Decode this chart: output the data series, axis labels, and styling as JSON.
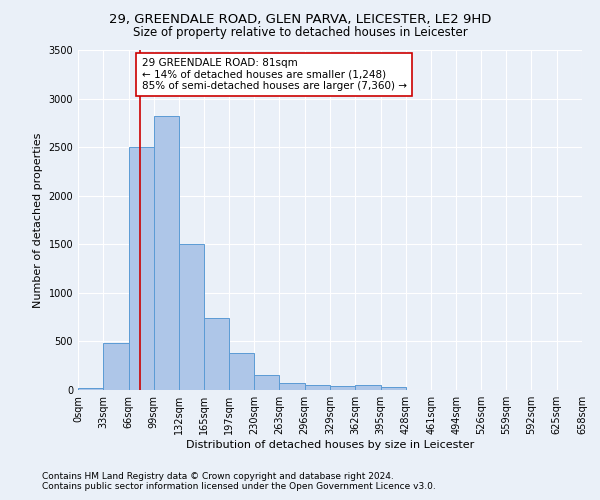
{
  "title1": "29, GREENDALE ROAD, GLEN PARVA, LEICESTER, LE2 9HD",
  "title2": "Size of property relative to detached houses in Leicester",
  "xlabel": "Distribution of detached houses by size in Leicester",
  "ylabel": "Number of detached properties",
  "bin_edges": [
    0,
    33,
    66,
    99,
    132,
    165,
    197,
    230,
    263,
    296,
    329,
    362,
    395,
    428,
    461,
    494,
    526,
    559,
    592,
    625,
    658
  ],
  "bar_heights": [
    20,
    480,
    2500,
    2820,
    1500,
    740,
    380,
    155,
    75,
    50,
    40,
    55,
    30,
    5,
    5,
    0,
    0,
    0,
    0,
    0
  ],
  "bar_color": "#aec6e8",
  "bar_edge_color": "#5b9bd5",
  "bg_color": "#eaf0f8",
  "grid_color": "#ffffff",
  "red_line_x": 81,
  "red_line_color": "#cc0000",
  "annotation_text": "29 GREENDALE ROAD: 81sqm\n← 14% of detached houses are smaller (1,248)\n85% of semi-detached houses are larger (7,360) →",
  "annotation_box_color": "#ffffff",
  "annotation_box_edge": "#cc0000",
  "ylim": [
    0,
    3500
  ],
  "yticks": [
    0,
    500,
    1000,
    1500,
    2000,
    2500,
    3000,
    3500
  ],
  "tick_labels": [
    "0sqm",
    "33sqm",
    "66sqm",
    "99sqm",
    "132sqm",
    "165sqm",
    "197sqm",
    "230sqm",
    "263sqm",
    "296sqm",
    "329sqm",
    "362sqm",
    "395sqm",
    "428sqm",
    "461sqm",
    "494sqm",
    "526sqm",
    "559sqm",
    "592sqm",
    "625sqm",
    "658sqm"
  ],
  "footer1": "Contains HM Land Registry data © Crown copyright and database right 2024.",
  "footer2": "Contains public sector information licensed under the Open Government Licence v3.0.",
  "title_fontsize": 9.5,
  "subtitle_fontsize": 8.5,
  "label_fontsize": 8,
  "tick_fontsize": 7,
  "annotation_fontsize": 7.5,
  "footer_fontsize": 6.5
}
